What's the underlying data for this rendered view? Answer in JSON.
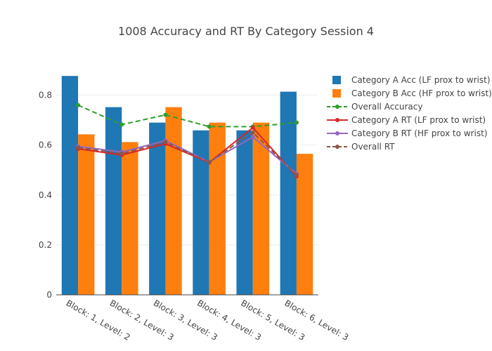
{
  "chart_data": {
    "type": "bar",
    "title": "1008 Accuracy and RT By Category Session 4",
    "categories": [
      "Block: 1, Level: 2",
      "Block: 2, Level: 3",
      "Block: 3, Level: 3",
      "Block: 4, Level: 3",
      "Block: 5, Level: 3",
      "Block: 6, Level: 3"
    ],
    "ylim": [
      0,
      0.9
    ],
    "yticks": [
      0,
      0.2,
      0.4,
      0.6,
      0.8
    ],
    "ytick_labels": [
      "0",
      "0.2",
      "0.4",
      "0.6",
      "0.8"
    ],
    "grid": true,
    "legend_position": "right",
    "series": [
      {
        "name": "Category A Acc (LF prox to wrist)",
        "kind": "bar",
        "color": "#1f77b4",
        "values": [
          0.877,
          0.752,
          0.69,
          0.659,
          0.659,
          0.814
        ]
      },
      {
        "name": "Category B Acc (HF prox to wrist)",
        "kind": "bar",
        "color": "#ff7f0e",
        "values": [
          0.643,
          0.612,
          0.752,
          0.69,
          0.69,
          0.565
        ]
      },
      {
        "name": "Overall Accuracy",
        "kind": "line",
        "dash": true,
        "color": "#2ca02c",
        "values": [
          0.76,
          0.682,
          0.721,
          0.674,
          0.674,
          0.69
        ]
      },
      {
        "name": "Category A RT (LF prox to wrist)",
        "kind": "line",
        "dash": false,
        "color": "#d62728",
        "values": [
          0.585,
          0.56,
          0.605,
          0.53,
          0.67,
          0.475
        ]
      },
      {
        "name": "Category B RT (HF prox to wrist)",
        "kind": "line",
        "dash": false,
        "color": "#9467bd",
        "values": [
          0.595,
          0.572,
          0.618,
          0.532,
          0.632,
          0.485
        ]
      },
      {
        "name": "Overall RT",
        "kind": "line",
        "dash": true,
        "color": "#8c564b",
        "values": [
          0.59,
          0.566,
          0.612,
          0.531,
          0.651,
          0.48
        ]
      }
    ]
  }
}
